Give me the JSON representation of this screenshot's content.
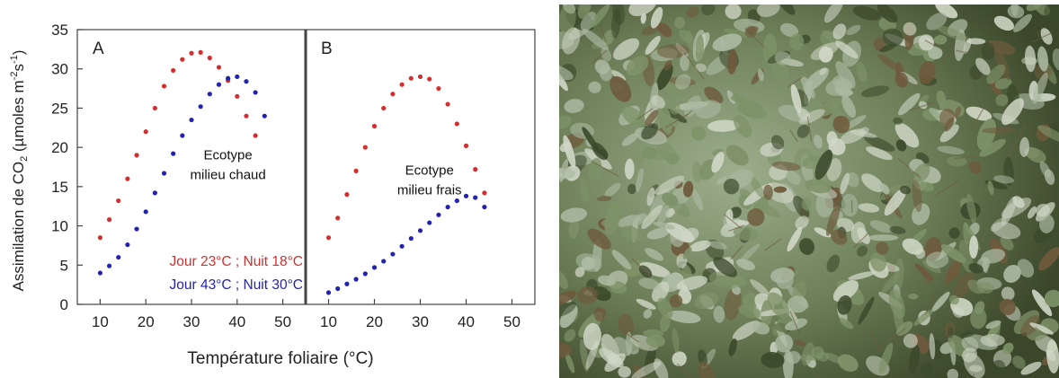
{
  "chart_data": {
    "type": "scatter",
    "ylabel": "Assimilation de CO2 (µmoles m-2s-1)",
    "ylabel_main": "Assimilation de CO",
    "ylabel_sub": "2",
    "ylabel_rest": " (µmoles m",
    "ylabel_sup1": "-2",
    "ylabel_s": "s",
    "ylabel_sup2": "-1",
    "ylabel_close": ")",
    "xlabel": "Température foliaire (°C)",
    "xlim": [
      5,
      55
    ],
    "ylim": [
      0,
      35
    ],
    "xticks": [
      "10",
      "20",
      "30",
      "40",
      "50"
    ],
    "yticks": [
      "0",
      "5",
      "10",
      "15",
      "20",
      "25",
      "30",
      "35"
    ],
    "panels": [
      {
        "letter": "A",
        "annotation": [
          "Ecotype",
          "milieu chaud"
        ],
        "annotation_pos": [
          38,
          18.5
        ],
        "legend": [
          {
            "text": "Jour 23°C ; Nuit 18°C",
            "color": "#d42e2e"
          },
          {
            "text": "Jour 43°C ; Nuit 30°C",
            "color": "#2323b0"
          }
        ],
        "series": [
          {
            "name": "Jour 23°C ; Nuit 18°C",
            "color": "#d42e2e",
            "x": [
              10,
              12,
              14,
              16,
              18,
              20,
              22,
              24,
              26,
              28,
              30,
              32,
              34,
              36,
              38,
              40,
              42,
              44
            ],
            "y": [
              8.5,
              10.8,
              13.2,
              16.0,
              19.0,
              22.0,
              25.0,
              27.8,
              29.8,
              31.2,
              32.0,
              32.1,
              31.4,
              30.2,
              28.5,
              26.5,
              24.0,
              21.5
            ]
          },
          {
            "name": "Jour 43°C ; Nuit 30°C",
            "color": "#2323b0",
            "x": [
              10,
              12,
              14,
              16,
              18,
              20,
              22,
              24,
              26,
              28,
              30,
              32,
              34,
              36,
              38,
              40,
              42,
              44,
              46
            ],
            "y": [
              4.0,
              4.9,
              6.0,
              7.6,
              9.6,
              11.8,
              14.2,
              16.7,
              19.2,
              21.5,
              23.5,
              25.2,
              26.8,
              28.0,
              28.8,
              29.0,
              28.4,
              27.0,
              24.0
            ]
          }
        ]
      },
      {
        "letter": "B",
        "annotation": [
          "Ecotype",
          "milieu frais"
        ],
        "annotation_pos": [
          32,
          16.5
        ],
        "series": [
          {
            "name": "Jour 23°C ; Nuit 18°C",
            "color": "#d42e2e",
            "x": [
              10,
              12,
              14,
              16,
              18,
              20,
              22,
              24,
              26,
              28,
              30,
              32,
              34,
              36,
              38,
              40,
              42,
              44
            ],
            "y": [
              8.5,
              11.0,
              14.0,
              17.0,
              20.0,
              22.7,
              25.0,
              26.8,
              28.0,
              28.8,
              29.0,
              28.7,
              27.5,
              25.5,
              23.0,
              20.2,
              17.2,
              14.2
            ]
          },
          {
            "name": "Jour 43°C ; Nuit 30°C",
            "color": "#2323b0",
            "x": [
              10,
              12,
              14,
              16,
              18,
              20,
              22,
              24,
              26,
              28,
              30,
              32,
              34,
              36,
              38,
              40,
              42,
              44
            ],
            "y": [
              1.5,
              2.0,
              2.6,
              3.2,
              3.9,
              4.7,
              5.5,
              6.4,
              7.4,
              8.4,
              9.4,
              10.4,
              11.4,
              12.4,
              13.2,
              13.8,
              13.6,
              12.4
            ]
          }
        ]
      }
    ]
  },
  "photo": {
    "subject": "photograph of silvery grey-green shrub foliage",
    "colors": {
      "dark": "#3c4a2c",
      "mid": "#7e9268",
      "leaf": "#a9b8a0",
      "light": "#cfd6c6",
      "brown": "#6e5a3c"
    }
  }
}
